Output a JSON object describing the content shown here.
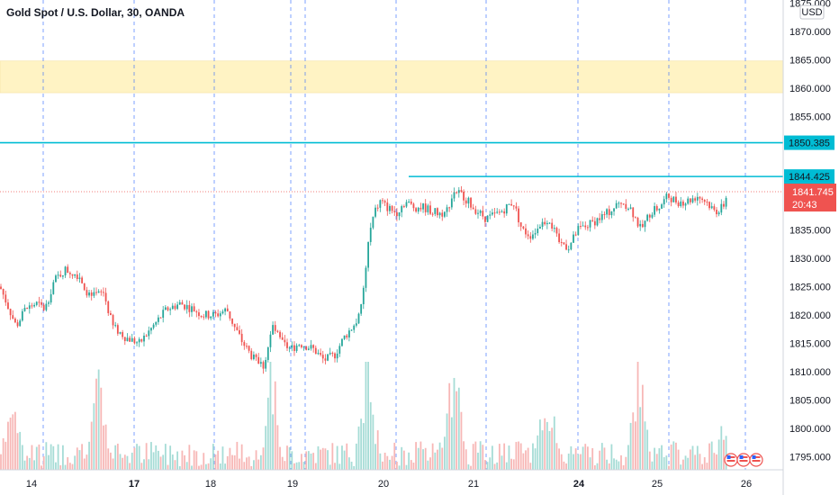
{
  "chart_data": {
    "type": "candlestick",
    "title": "Gold Spot / U.S. Dollar, 30, OANDA",
    "currency_label": "USD",
    "ylim": [
      1790,
      1876
    ],
    "y_ticks": [
      1795,
      1800,
      1805,
      1810,
      1815,
      1820,
      1825,
      1830,
      1835,
      1840,
      1845,
      1850,
      1855,
      1860,
      1865,
      1870,
      1875
    ],
    "y_tick_labels": [
      "1795.000",
      "1800.000",
      "1805.000",
      "1810.000",
      "1815.000",
      "1820.000",
      "1825.000",
      "1830.000",
      "1835.000",
      "1840.000",
      "1845.000",
      "1850.000",
      "1855.000",
      "1860.000",
      "1865.000",
      "1870.000",
      "1875.000"
    ],
    "x_ticks": [
      {
        "label": "14",
        "bold": false
      },
      {
        "label": "17",
        "bold": true
      },
      {
        "label": "18",
        "bold": false
      },
      {
        "label": "19",
        "bold": false
      },
      {
        "label": "20",
        "bold": false
      },
      {
        "label": "21",
        "bold": false
      },
      {
        "label": "24",
        "bold": true
      },
      {
        "label": "25",
        "bold": false
      },
      {
        "label": "26",
        "bold": false
      }
    ],
    "session_breaks": 11,
    "zone": {
      "low": 1859.2,
      "high": 1864.8,
      "color": "#fff3c4"
    },
    "hlines": [
      {
        "value": 1850.385,
        "label": "1850.385",
        "color": "#00bcd4",
        "extent": "full"
      },
      {
        "value": 1844.425,
        "label": "1844.425",
        "color": "#00bcd4",
        "extent": "partial"
      }
    ],
    "last_price": {
      "value": 1841.745,
      "label": "1841.745",
      "countdown": "20:43",
      "color": "#ef5350"
    },
    "colors": {
      "up": "#26a69a",
      "down": "#ef5350",
      "grid": "#2962ff",
      "axis_border": "#d1d4dc"
    },
    "path_points": [
      [
        0,
        1825
      ],
      [
        18,
        1818
      ],
      [
        28,
        1821
      ],
      [
        40,
        1822
      ],
      [
        50,
        1821
      ],
      [
        60,
        1826
      ],
      [
        72,
        1828
      ],
      [
        88,
        1827
      ],
      [
        100,
        1823
      ],
      [
        115,
        1824
      ],
      [
        125,
        1818
      ],
      [
        140,
        1816
      ],
      [
        155,
        1815
      ],
      [
        170,
        1818
      ],
      [
        185,
        1821
      ],
      [
        200,
        1822
      ],
      [
        215,
        1821
      ],
      [
        225,
        1820
      ],
      [
        240,
        1820
      ],
      [
        252,
        1821
      ],
      [
        260,
        1818
      ],
      [
        270,
        1815
      ],
      [
        283,
        1812
      ],
      [
        293,
        1811
      ],
      [
        303,
        1818
      ],
      [
        313,
        1815
      ],
      [
        323,
        1814
      ],
      [
        333,
        1815
      ],
      [
        348,
        1814
      ],
      [
        360,
        1812
      ],
      [
        372,
        1813
      ],
      [
        382,
        1816
      ],
      [
        392,
        1818
      ],
      [
        400,
        1820
      ],
      [
        405,
        1826
      ],
      [
        410,
        1834
      ],
      [
        416,
        1838
      ],
      [
        422,
        1840
      ],
      [
        430,
        1839
      ],
      [
        440,
        1838
      ],
      [
        450,
        1840
      ],
      [
        460,
        1839
      ],
      [
        470,
        1839
      ],
      [
        485,
        1838
      ],
      [
        495,
        1838
      ],
      [
        505,
        1842
      ],
      [
        515,
        1841
      ],
      [
        525,
        1839
      ],
      [
        540,
        1837
      ],
      [
        555,
        1838
      ],
      [
        570,
        1840
      ],
      [
        580,
        1835
      ],
      [
        590,
        1834
      ],
      [
        600,
        1836
      ],
      [
        610,
        1837
      ],
      [
        620,
        1833
      ],
      [
        632,
        1832
      ],
      [
        642,
        1835
      ],
      [
        655,
        1836
      ],
      [
        665,
        1837
      ],
      [
        675,
        1838
      ],
      [
        690,
        1840
      ],
      [
        700,
        1839
      ],
      [
        712,
        1835
      ],
      [
        722,
        1838
      ],
      [
        732,
        1839
      ],
      [
        742,
        1841
      ],
      [
        752,
        1840
      ],
      [
        762,
        1840
      ],
      [
        775,
        1841
      ],
      [
        785,
        1840
      ],
      [
        795,
        1838
      ],
      [
        803,
        1839
      ],
      [
        809,
        1841.7
      ]
    ],
    "volume_spikes": [
      [
        13,
        0.8
      ],
      [
        110,
        1.3
      ],
      [
        300,
        1.4
      ],
      [
        408,
        1.5
      ],
      [
        504,
        1.3
      ],
      [
        607,
        1.2
      ],
      [
        710,
        1.6
      ],
      [
        805,
        0.5
      ]
    ],
    "event_icons": 3
  }
}
